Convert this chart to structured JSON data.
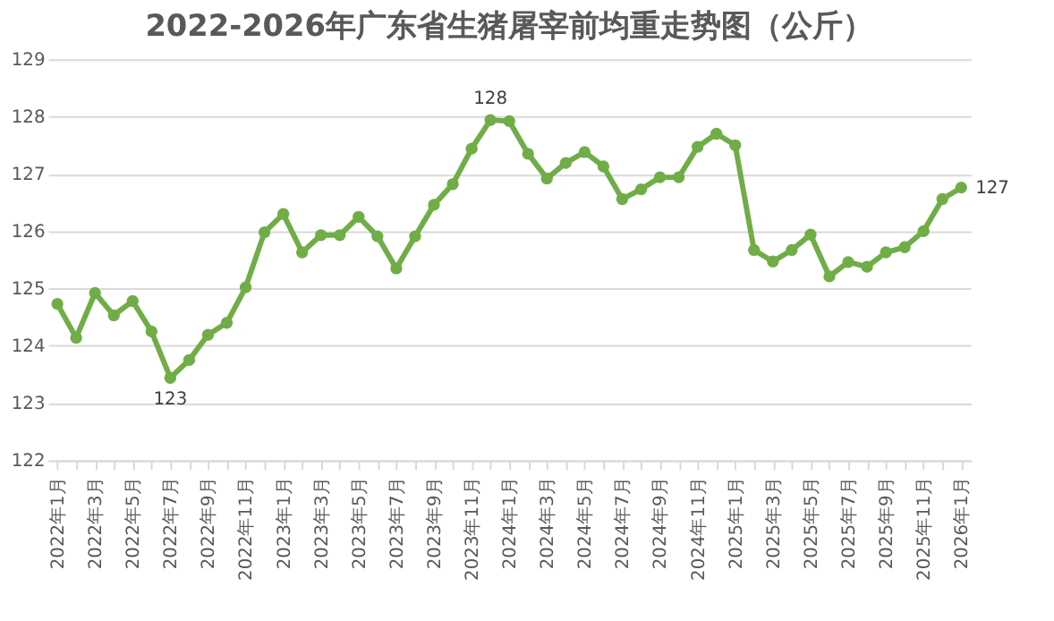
{
  "chart_data": {
    "type": "line",
    "title": "2022-2026年广东省生猪屠宰前均重走势图（公斤）",
    "categories": [
      "2022年1月",
      null,
      "2022年3月",
      null,
      "2022年5月",
      null,
      "2022年7月",
      null,
      "2022年9月",
      null,
      "2022年11月",
      null,
      "2023年1月",
      null,
      "2023年3月",
      null,
      "2023年5月",
      null,
      "2023年7月",
      null,
      "2023年9月",
      null,
      "2023年11月",
      null,
      "2024年1月",
      null,
      "2024年3月",
      null,
      "2024年5月",
      null,
      "2024年7月",
      null,
      "2024年9月",
      null,
      "2024年11月",
      null,
      "2025年1月",
      null,
      "2025年3月",
      null,
      "2025年5月",
      null,
      "2025年7月",
      null,
      "2025年9月",
      null,
      "2025年11月",
      null,
      "2026年1月"
    ],
    "series": [
      {
        "color": "#70ad47",
        "values": [
          124.73,
          124.14,
          124.92,
          124.53,
          124.78,
          124.25,
          123.44,
          123.75,
          124.19,
          124.4,
          125.02,
          125.98,
          126.3,
          125.63,
          125.93,
          125.93,
          126.25,
          125.91,
          125.35,
          125.91,
          126.46,
          126.82,
          127.44,
          127.94,
          127.92,
          127.35,
          126.92,
          127.19,
          127.38,
          127.13,
          126.56,
          126.73,
          126.94,
          126.94,
          127.47,
          127.7,
          127.5,
          125.67,
          125.47,
          125.67,
          125.94,
          125.21,
          125.46,
          125.38,
          125.63,
          125.72,
          126.0,
          126.56,
          126.76
        ],
        "value_labels": [
          null,
          null,
          null,
          null,
          null,
          null,
          "123",
          null,
          null,
          null,
          null,
          null,
          null,
          null,
          null,
          null,
          null,
          null,
          null,
          null,
          null,
          null,
          null,
          "128",
          null,
          null,
          null,
          null,
          null,
          null,
          null,
          null,
          null,
          null,
          null,
          null,
          null,
          null,
          null,
          null,
          null,
          null,
          null,
          null,
          null,
          null,
          null,
          null,
          "127"
        ]
      }
    ],
    "ylim": [
      122,
      129
    ],
    "yticks": [
      122,
      123,
      124,
      125,
      126,
      127,
      128,
      129
    ],
    "grid": "y",
    "marker": "circle",
    "line_style": "solid"
  }
}
